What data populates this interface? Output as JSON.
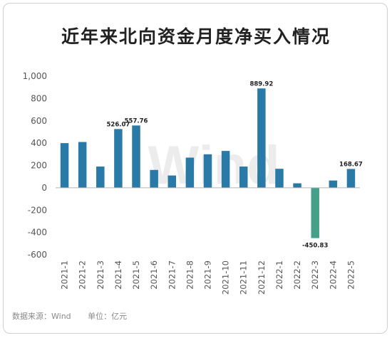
{
  "title": "近年来北向资金月度净买入情况",
  "watermark": "Wind",
  "footer": {
    "source": "数据来源：Wind",
    "unit": "单位：亿元"
  },
  "colors": {
    "positive_bar": "#2a7aa7",
    "negative_bar": "#45a08a",
    "axis_text": "#555555",
    "zero_line": "#b3b3b3"
  },
  "chart_data": {
    "type": "bar",
    "title": "近年来北向资金月度净买入情况",
    "categories": [
      "2021-1",
      "2021-2",
      "2021-3",
      "2021-4",
      "2021-5",
      "2021-6",
      "2021-7",
      "2021-8",
      "2021-9",
      "2021-10",
      "2021-11",
      "2021-12",
      "2022-1",
      "2022-2",
      "2022-3",
      "2022-4",
      "2022-5"
    ],
    "values": [
      400,
      410,
      190,
      526.07,
      557.76,
      160,
      110,
      270,
      300,
      330,
      190,
      889.92,
      170,
      40,
      -450.83,
      65,
      168.67
    ],
    "data_labels": [
      {
        "index": 3,
        "text": "526.07"
      },
      {
        "index": 4,
        "text": "557.76"
      },
      {
        "index": 11,
        "text": "889.92"
      },
      {
        "index": 14,
        "text": "-450.83"
      },
      {
        "index": 16,
        "text": "168.67"
      }
    ],
    "yticks": [
      1000,
      800,
      600,
      400,
      200,
      0,
      -200,
      -400,
      -600
    ],
    "ytick_labels": [
      "1,000",
      "800",
      "600",
      "400",
      "200",
      "0",
      "-200",
      "-400",
      "-600"
    ],
    "ylim": [
      -600,
      1000
    ],
    "grid": false,
    "legend": "none"
  }
}
